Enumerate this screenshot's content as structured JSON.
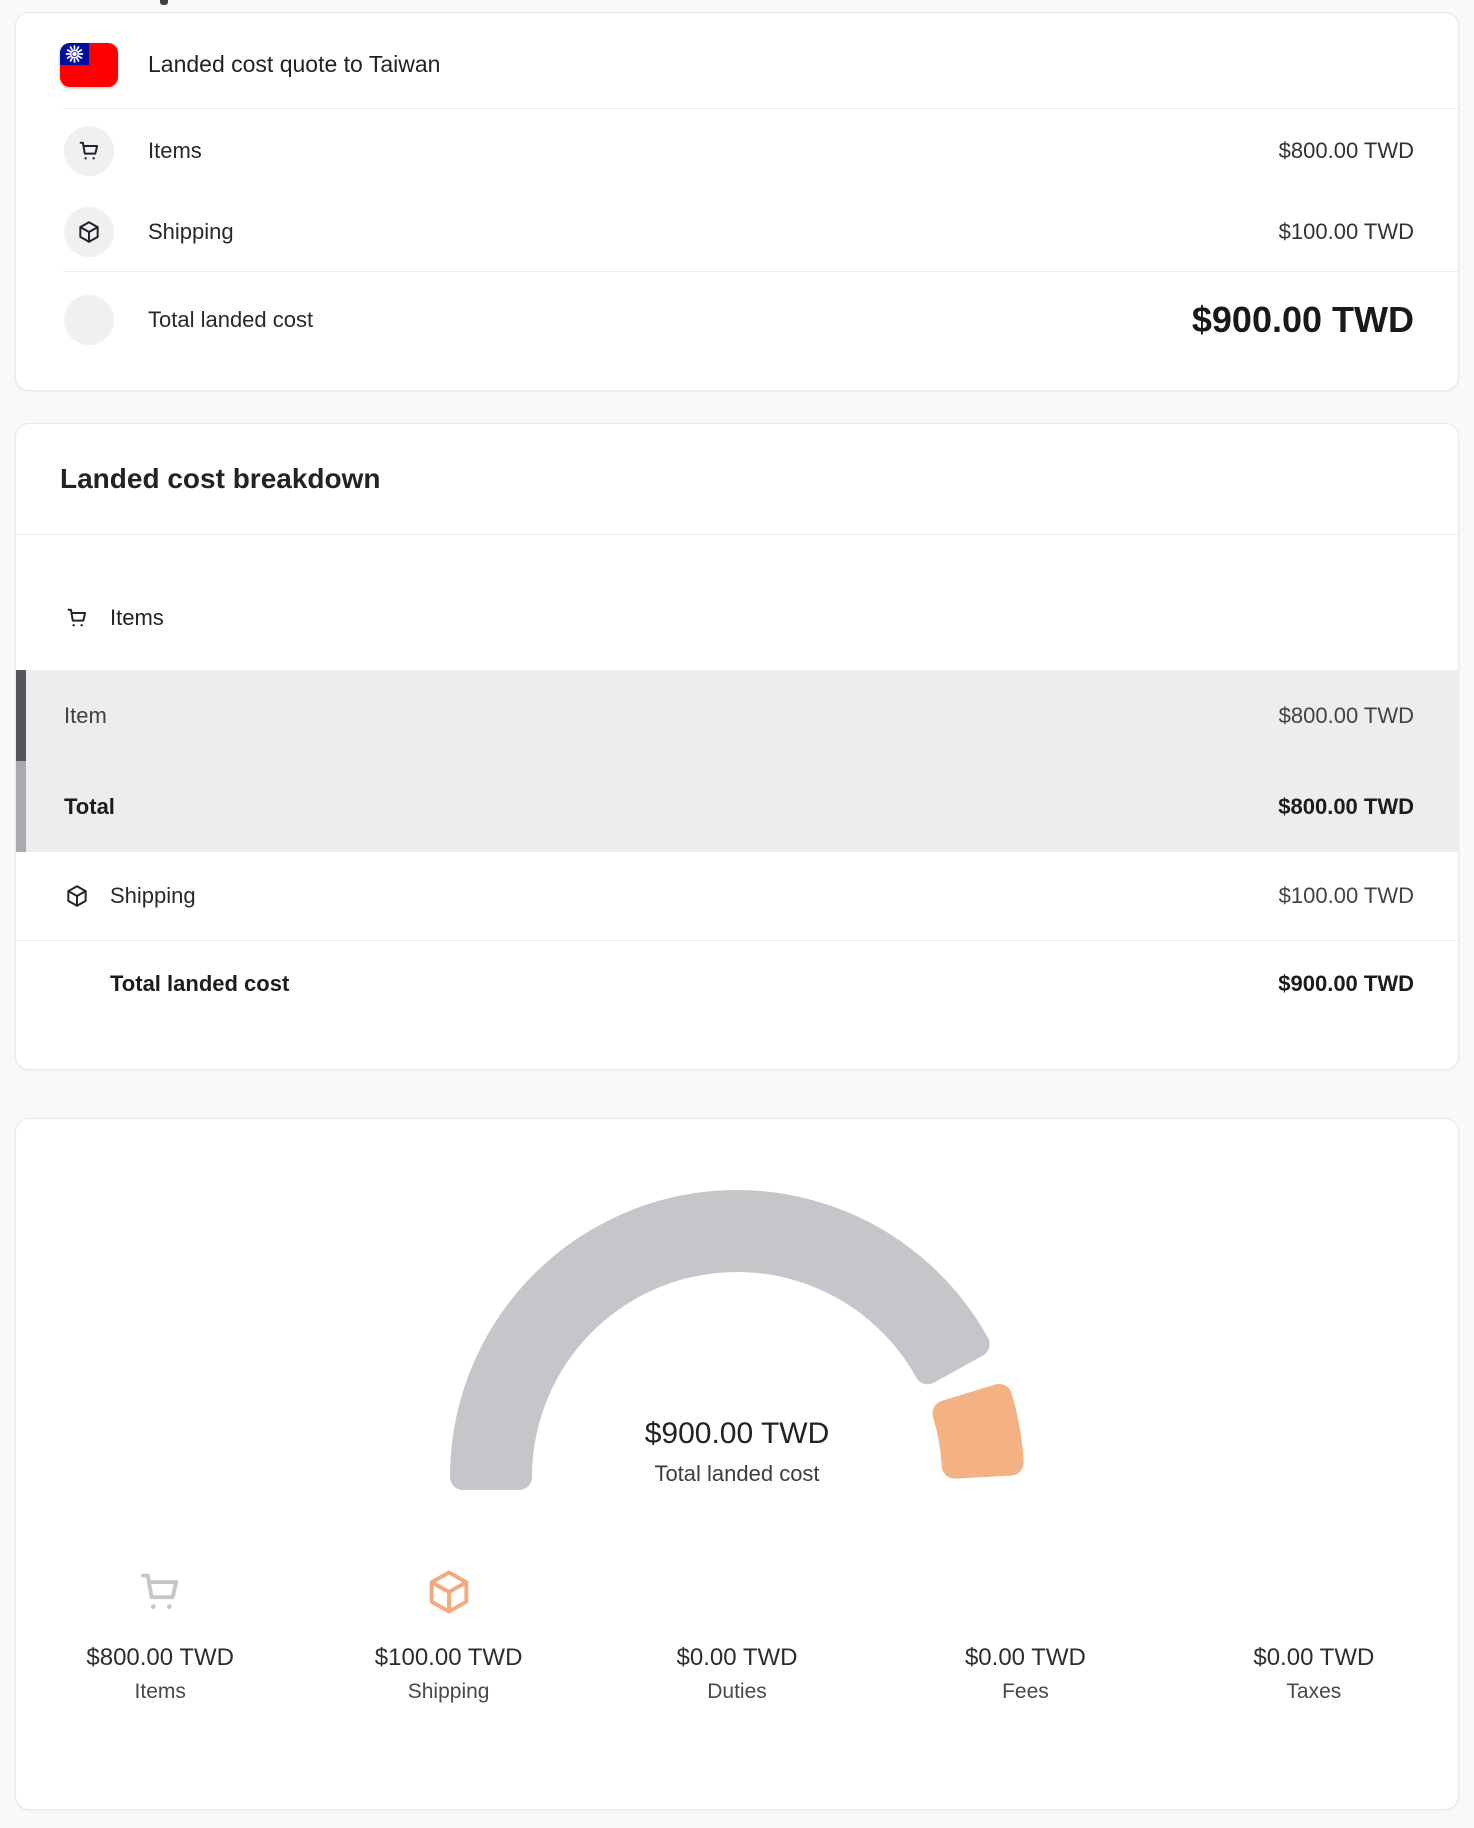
{
  "quote_card": {
    "title": "Landed cost quote to Taiwan",
    "flag": "taiwan-flag",
    "rows": [
      {
        "icon": "cart-icon",
        "label": "Items",
        "value": "$800.00 TWD"
      },
      {
        "icon": "package-icon",
        "label": "Shipping",
        "value": "$100.00 TWD"
      },
      {
        "icon": "shapes-icon",
        "label": "Total landed cost",
        "value": "$900.00 TWD"
      }
    ]
  },
  "breakdown_card": {
    "title": "Landed cost breakdown",
    "items_section_label": "Items",
    "item_row": {
      "label": "Item",
      "value": "$800.00 TWD"
    },
    "items_total_row": {
      "label": "Total",
      "value": "$800.00 TWD"
    },
    "shipping_row": {
      "label": "Shipping",
      "value": "$100.00 TWD"
    },
    "total_row": {
      "label": "Total landed cost",
      "value": "$900.00 TWD"
    }
  },
  "chart_data": {
    "type": "gauge",
    "shape": "semicircle-donut",
    "span_degrees": 180,
    "total": 900,
    "currency": "TWD",
    "center_value": "$900.00 TWD",
    "center_label": "Total landed cost",
    "center_icon": "shapes-icon",
    "center_icon_color": "#c6c6ca",
    "segments": [
      {
        "name": "Items",
        "value": 800,
        "color": "#c6c6ca"
      },
      {
        "name": "Shipping",
        "value": 100,
        "color": "#f4b183"
      },
      {
        "name": "Duties",
        "value": 0,
        "color": "#57d7c4"
      },
      {
        "name": "Fees",
        "value": 0,
        "color": "#e4618c"
      },
      {
        "name": "Taxes",
        "value": 0,
        "color": "#7a7ee3"
      }
    ],
    "legend_position": "bottom",
    "legend": [
      {
        "icon": "cart-icon",
        "value": "$800.00 TWD",
        "label": "Items",
        "color": "#c6c6ca",
        "soft": "#c6c6ca"
      },
      {
        "icon": "package-icon",
        "value": "$100.00 TWD",
        "label": "Shipping",
        "color": "#f2ab80",
        "soft": "#f2ab80"
      },
      {
        "icon": "shapes-triangle-icon",
        "value": "$0.00 TWD",
        "label": "Duties",
        "color": "#57d7c4",
        "soft": "#b9ece4"
      },
      {
        "icon": "shapes-circle-icon",
        "value": "$0.00 TWD",
        "label": "Fees",
        "color": "#e4618c",
        "soft": "#f4b4c7"
      },
      {
        "icon": "shapes-square-icon",
        "value": "$0.00 TWD",
        "label": "Taxes",
        "color": "#7a7ee3",
        "soft": "#babcf2"
      }
    ]
  }
}
